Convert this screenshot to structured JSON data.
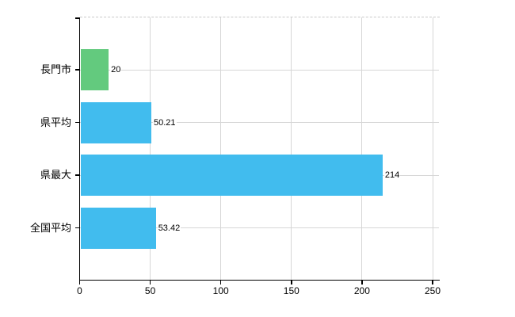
{
  "chart_data": {
    "type": "bar",
    "orientation": "horizontal",
    "title": "",
    "xlabel": "",
    "ylabel": "",
    "categories": [
      "長門市",
      "県平均",
      "県最大",
      "全国平均"
    ],
    "values": [
      20,
      50.21,
      214,
      53.42
    ],
    "value_labels": [
      "20",
      "50.21",
      "214",
      "53.42"
    ],
    "bar_colors": [
      "#63ca7e",
      "#41bcee",
      "#41bcee",
      "#41bcee"
    ],
    "x_ticks": [
      0,
      50,
      100,
      150,
      200,
      250
    ],
    "x_tick_labels": [
      "0",
      "50",
      "100",
      "150",
      "200",
      "250"
    ],
    "xlim": [
      0,
      255
    ],
    "grid": true,
    "legend": false
  },
  "colors": {
    "bar_green": "#63ca7e",
    "bar_blue": "#41bcee",
    "gridline": "#d6d6d6",
    "plot_top_border": "#c9c9c9",
    "axis": "#000000",
    "text": "#000000",
    "background": "#ffffff"
  }
}
